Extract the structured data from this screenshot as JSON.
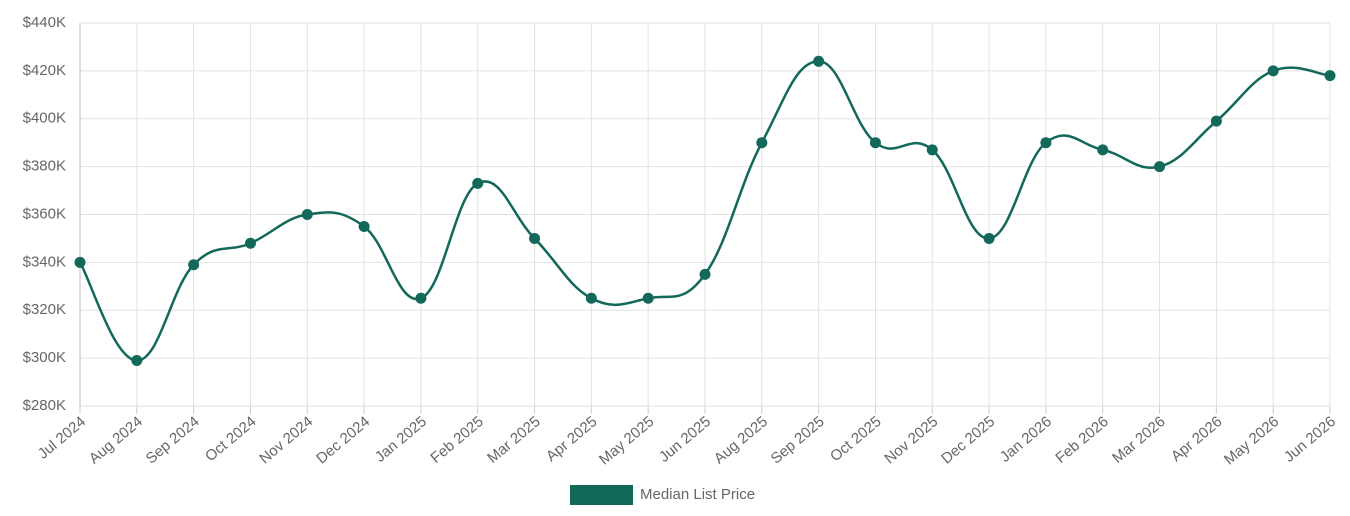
{
  "chart_data": {
    "type": "line",
    "categories": [
      "Jul 2024",
      "Aug 2024",
      "Sep 2024",
      "Oct 2024",
      "Nov 2024",
      "Dec 2024",
      "Jan 2025",
      "Feb 2025",
      "Mar 2025",
      "Apr 2025",
      "May 2025",
      "Jun 2025",
      "Aug 2025",
      "Sep 2025",
      "Oct 2025",
      "Nov 2025",
      "Dec 2025",
      "Jan 2026",
      "Feb 2026",
      "Mar 2026",
      "Apr 2026",
      "May 2026",
      "Jun 2026"
    ],
    "series": [
      {
        "name": "Median List Price",
        "color": "#12695a",
        "values": [
          340000,
          299000,
          339000,
          348000,
          360000,
          355000,
          325000,
          373000,
          350000,
          325000,
          325000,
          335000,
          390000,
          424000,
          390000,
          387000,
          350000,
          390000,
          387000,
          380000,
          399000,
          420000,
          418000
        ]
      }
    ],
    "ylim": [
      280000,
      440000
    ],
    "yticks": [
      {
        "value": 280000,
        "label": "$280K"
      },
      {
        "value": 300000,
        "label": "$300K"
      },
      {
        "value": 320000,
        "label": "$320K"
      },
      {
        "value": 340000,
        "label": "$340K"
      },
      {
        "value": 360000,
        "label": "$360K"
      },
      {
        "value": 380000,
        "label": "$380K"
      },
      {
        "value": 400000,
        "label": "$400K"
      },
      {
        "value": 420000,
        "label": "$420K"
      },
      {
        "value": 440000,
        "label": "$440K"
      }
    ],
    "grid": true,
    "legend": "bottom"
  }
}
